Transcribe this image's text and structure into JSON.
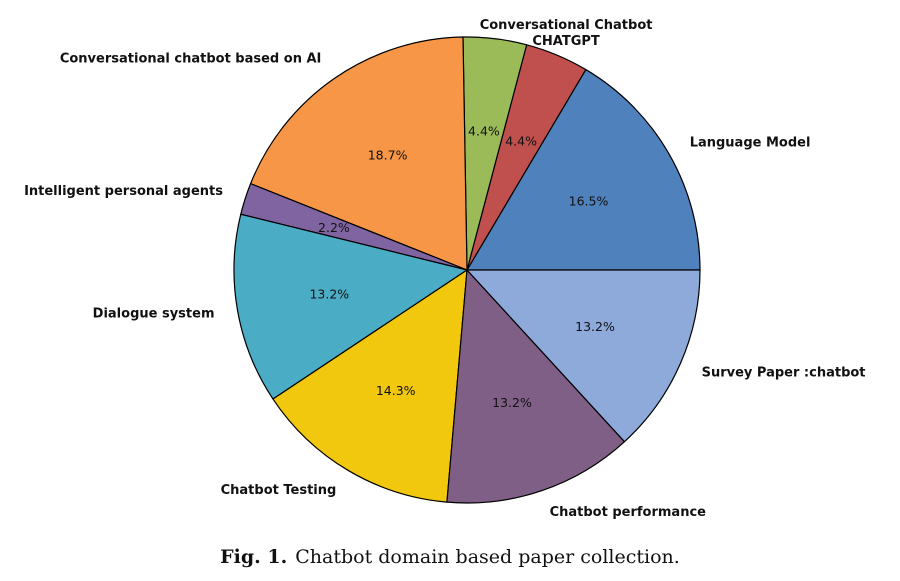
{
  "caption": {
    "fig_label": "Fig. 1.",
    "text": "Chatbot domain based paper collection."
  },
  "chart_data": {
    "type": "pie",
    "title": "",
    "start_angle_deg": 0,
    "direction": "counterclockwise",
    "slices": [
      {
        "label": "Language Model",
        "value": 16.5,
        "pct_label": "16.5%",
        "color": "#4f81bd"
      },
      {
        "label": "Conversational Chatbot\nCHATGPT",
        "value": 4.4,
        "pct_label": "4.4%",
        "color": "#c0504d"
      },
      {
        "label": "",
        "value": 4.4,
        "pct_label": "4.4%",
        "color": "#9bbb59"
      },
      {
        "label": "Conversational chatbot based on AI",
        "value": 18.7,
        "pct_label": "18.7%",
        "color": "#f79646"
      },
      {
        "label": "Intelligent personal agents",
        "value": 2.2,
        "pct_label": "2.2%",
        "color": "#8064a2"
      },
      {
        "label": "Dialogue system",
        "value": 13.2,
        "pct_label": "13.2%",
        "color": "#4bacc6"
      },
      {
        "label": "Chatbot Testing",
        "value": 14.3,
        "pct_label": "14.3%",
        "color": "#f2c80f"
      },
      {
        "label": "Chatbot performance",
        "value": 13.2,
        "pct_label": "13.2%",
        "color": "#7f5f86"
      },
      {
        "label": "Survey Paper :chatbot",
        "value": 13.2,
        "pct_label": "13.2%",
        "color": "#8eaadb"
      }
    ]
  }
}
